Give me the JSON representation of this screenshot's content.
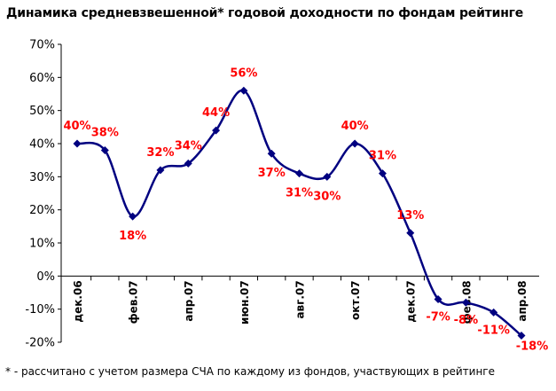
{
  "chart_data": {
    "type": "line",
    "title": "Динамика средневзвешенной* годовой доходности по фондам рейтинге",
    "footnote": "* - рассчитано с учетом размера СЧА по каждому из фондов, участвующих в рейтинге",
    "ylim": [
      -20,
      70
    ],
    "y_ticks": [
      "70%",
      "60%",
      "50%",
      "40%",
      "30%",
      "20%",
      "10%",
      "0%",
      "-10%",
      "-20%"
    ],
    "x_tick_labels": [
      "дек.06",
      "фев.07",
      "апр.07",
      "июн.07",
      "авг.07",
      "окт.07",
      "дек.07",
      "фев.08",
      "апр.08"
    ],
    "grid": false,
    "legend": "none",
    "line_color": "#000080",
    "label_color": "#FF0000",
    "series": [
      {
        "values": [
          40,
          38,
          18,
          32,
          34,
          44,
          56,
          37,
          31,
          30,
          40,
          31,
          13,
          -7,
          -8,
          -11,
          -18
        ],
        "labels": [
          "40%",
          "38%",
          "18%",
          "32%",
          "34%",
          "44%",
          "56%",
          "37%",
          "31%",
          "30%",
          "40%",
          "31%",
          "13%",
          "-7%",
          "-8%",
          "-11%",
          "-18%"
        ]
      }
    ]
  }
}
